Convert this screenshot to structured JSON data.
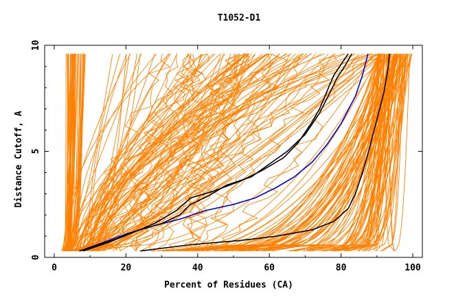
{
  "chart_data": {
    "type": "line",
    "title": "T1052-D1",
    "xlabel": "Percent of Residues (CA)",
    "ylabel": "Distance Cutoff, A",
    "xlim": [
      0,
      100
    ],
    "ylim": [
      0,
      10
    ],
    "x_ticks": [
      "0",
      "20",
      "40",
      "60",
      "80",
      "100"
    ],
    "y_ticks": [
      "0",
      "5",
      "10"
    ],
    "grid": false,
    "legend": "none",
    "colors": {
      "background_models": "#ff8000",
      "black": "#000000",
      "blue": "#0000cc"
    },
    "highlighted_series": [
      {
        "color": "#0000cc",
        "points": [
          [
            7,
            0.3
          ],
          [
            12,
            0.6
          ],
          [
            20,
            1.1
          ],
          [
            28,
            1.5
          ],
          [
            35,
            1.8
          ],
          [
            42,
            2.2
          ],
          [
            50,
            2.5
          ],
          [
            56,
            2.8
          ],
          [
            62,
            3.3
          ],
          [
            67,
            3.8
          ],
          [
            72,
            4.5
          ],
          [
            76,
            5.3
          ],
          [
            80,
            6.3
          ],
          [
            84,
            7.6
          ],
          [
            86,
            8.6
          ],
          [
            87.5,
            9.6
          ]
        ]
      },
      {
        "color": "#000000",
        "points": [
          [
            8,
            0.3
          ],
          [
            15,
            0.7
          ],
          [
            22,
            1.2
          ],
          [
            30,
            1.6
          ],
          [
            35,
            2.0
          ],
          [
            38,
            2.5
          ],
          [
            43,
            2.9
          ],
          [
            48,
            3.4
          ],
          [
            55,
            3.8
          ],
          [
            60,
            4.4
          ],
          [
            65,
            5.0
          ],
          [
            70,
            5.8
          ],
          [
            74,
            6.8
          ],
          [
            77,
            7.8
          ],
          [
            79,
            8.5
          ],
          [
            81,
            9.0
          ],
          [
            83,
            9.6
          ]
        ]
      },
      {
        "color": "#000000",
        "points": [
          [
            7,
            0.3
          ],
          [
            18,
            0.9
          ],
          [
            28,
            1.6
          ],
          [
            34,
            2.2
          ],
          [
            38,
            2.8
          ],
          [
            44,
            3.1
          ],
          [
            52,
            3.6
          ],
          [
            58,
            4.1
          ],
          [
            64,
            4.7
          ],
          [
            68,
            5.4
          ],
          [
            72,
            6.4
          ],
          [
            74,
            7.0
          ],
          [
            76,
            7.8
          ],
          [
            78,
            8.6
          ],
          [
            80,
            9.1
          ],
          [
            82,
            9.6
          ]
        ]
      },
      {
        "color": "#000000",
        "points": [
          [
            24,
            0.3
          ],
          [
            38,
            0.6
          ],
          [
            52,
            0.8
          ],
          [
            62,
            1.0
          ],
          [
            72,
            1.3
          ],
          [
            78,
            1.7
          ],
          [
            82,
            2.3
          ],
          [
            84,
            3.0
          ],
          [
            86,
            4.0
          ],
          [
            88,
            5.2
          ],
          [
            90,
            6.5
          ],
          [
            92,
            7.8
          ],
          [
            93,
            8.8
          ],
          [
            93.5,
            9.6
          ]
        ]
      }
    ]
  }
}
